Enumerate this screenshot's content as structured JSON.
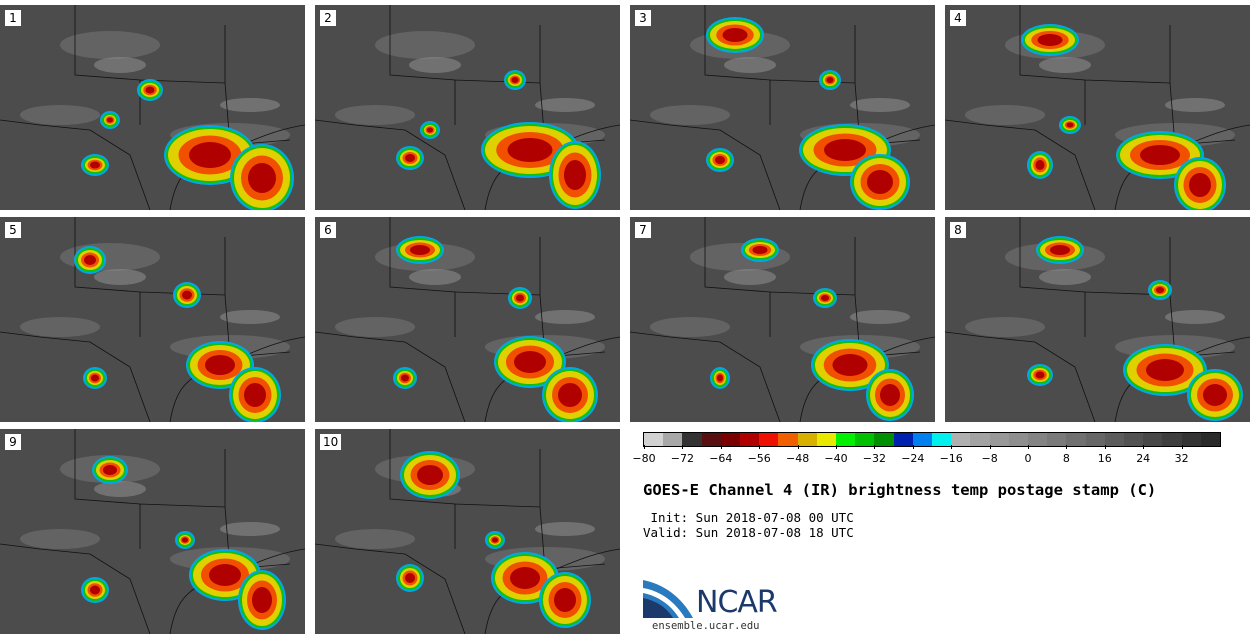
{
  "panels": [
    {
      "label": "1"
    },
    {
      "label": "2"
    },
    {
      "label": "3"
    },
    {
      "label": "4"
    },
    {
      "label": "5"
    },
    {
      "label": "6"
    },
    {
      "label": "7"
    },
    {
      "label": "8"
    },
    {
      "label": "9"
    },
    {
      "label": "10"
    }
  ],
  "colorbar": {
    "colors": [
      "#d2d2d2",
      "#a8a8a8",
      "#333333",
      "#5a1010",
      "#7a0000",
      "#b00000",
      "#ee1000",
      "#f06000",
      "#d8b000",
      "#e8e800",
      "#00f000",
      "#00c000",
      "#009000",
      "#0020b0",
      "#0080f0",
      "#00f0f0",
      "#b0b0b0",
      "#a2a2a2",
      "#989898",
      "#8e8e8e",
      "#848484",
      "#7a7a7a",
      "#707070",
      "#666666",
      "#5c5c5c",
      "#525252",
      "#484848",
      "#3e3e3e",
      "#343434",
      "#2a2a2a"
    ],
    "ticks": [
      "−80",
      "−72",
      "−64",
      "−56",
      "−48",
      "−40",
      "−32",
      "−24",
      "−16",
      "−8",
      "0",
      "8",
      "16",
      "24",
      "32"
    ]
  },
  "title": "GOES-E Channel 4 (IR) brightness temp postage stamp (C)",
  "init_line": "Init: Sun 2018-07-08 00 UTC",
  "valid_line": "Valid: Sun 2018-07-08 18 UTC",
  "logo": {
    "name": "NCAR",
    "url": "ensemble.ucar.edu"
  }
}
